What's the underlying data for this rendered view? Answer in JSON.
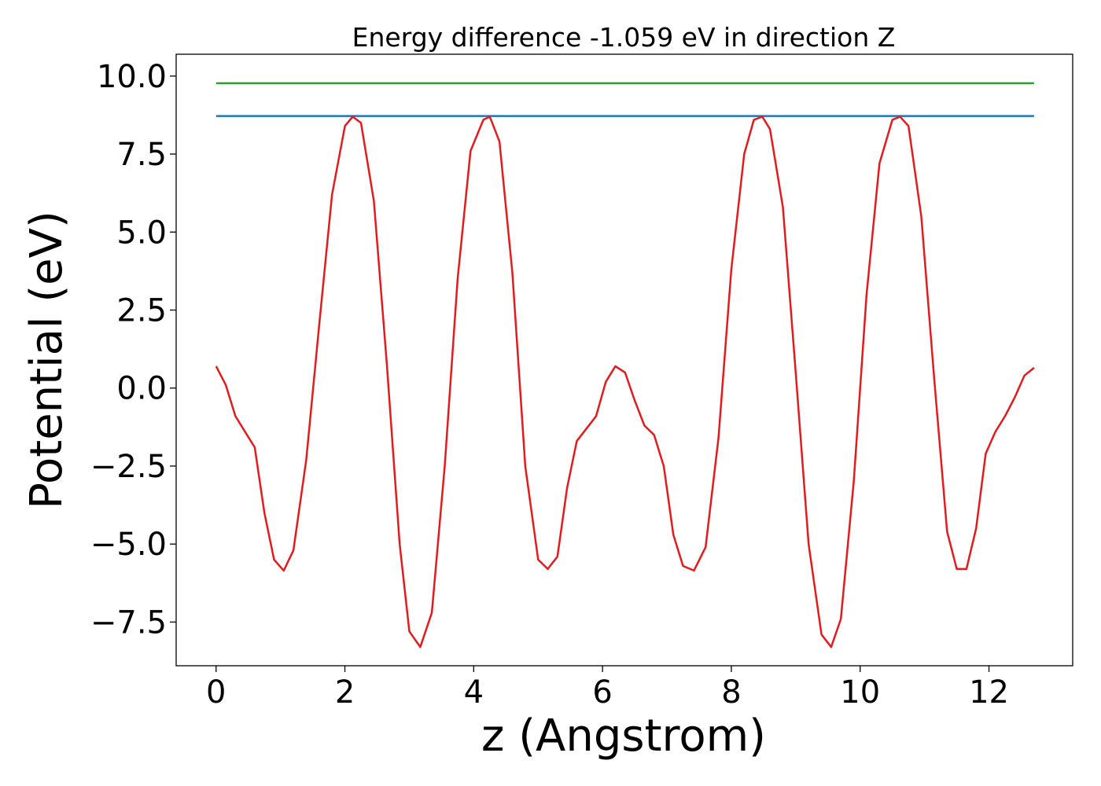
{
  "chart_data": {
    "type": "line",
    "title": "Energy difference -1.059 eV in direction Z",
    "xlabel": "z (Angstrom)",
    "ylabel": "Potential (eV)",
    "xlim": [
      -0.62,
      13.3
    ],
    "ylim": [
      -8.9,
      10.7
    ],
    "x_ticks": [
      0,
      2,
      4,
      6,
      8,
      10,
      12
    ],
    "x_tick_labels": [
      "0",
      "2",
      "4",
      "6",
      "8",
      "10",
      "12"
    ],
    "y_ticks": [
      -7.5,
      -5.0,
      -2.5,
      0.0,
      2.5,
      5.0,
      7.5,
      10.0
    ],
    "y_tick_labels": [
      "−7.5",
      "−5.0",
      "−2.5",
      "0.0",
      "2.5",
      "5.0",
      "7.5",
      "10.0"
    ],
    "grid": false,
    "series": [
      {
        "color": "#2ca02c",
        "x": [
          0,
          12.7
        ],
        "y": [
          9.77,
          9.77
        ]
      },
      {
        "color": "#1f77b4",
        "x": [
          0,
          12.7
        ],
        "y": [
          8.72,
          8.72
        ]
      },
      {
        "color": "#e41a1c",
        "x": [
          0,
          0.15,
          0.3,
          0.45,
          0.6,
          0.75,
          0.9,
          1.05,
          1.2,
          1.4,
          1.6,
          1.8,
          2.0,
          2.12,
          2.25,
          2.45,
          2.65,
          2.85,
          3.0,
          3.17,
          3.35,
          3.55,
          3.75,
          3.95,
          4.15,
          4.25,
          4.4,
          4.6,
          4.8,
          5.0,
          5.15,
          5.3,
          5.45,
          5.6,
          5.75,
          5.9,
          6.05,
          6.2,
          6.35,
          6.5,
          6.65,
          6.8,
          6.95,
          7.1,
          7.25,
          7.42,
          7.6,
          7.8,
          8.0,
          8.2,
          8.35,
          8.48,
          8.6,
          8.8,
          9.0,
          9.2,
          9.4,
          9.55,
          9.7,
          9.9,
          10.1,
          10.3,
          10.5,
          10.62,
          10.75,
          10.95,
          11.15,
          11.35,
          11.5,
          11.65,
          11.8,
          11.95,
          12.1,
          12.25,
          12.4,
          12.55,
          12.7
        ],
        "y": [
          0.7,
          0.1,
          -0.9,
          -1.4,
          -1.9,
          -4.0,
          -5.5,
          -5.85,
          -5.2,
          -2.3,
          2.0,
          6.2,
          8.4,
          8.7,
          8.5,
          6.0,
          0.8,
          -5.0,
          -7.8,
          -8.3,
          -7.2,
          -2.5,
          3.5,
          7.6,
          8.6,
          8.7,
          7.9,
          3.7,
          -2.5,
          -5.5,
          -5.8,
          -5.4,
          -3.2,
          -1.7,
          -1.3,
          -0.9,
          0.2,
          0.7,
          0.5,
          -0.4,
          -1.2,
          -1.5,
          -2.5,
          -4.7,
          -5.7,
          -5.85,
          -5.1,
          -1.6,
          3.8,
          7.5,
          8.6,
          8.7,
          8.3,
          5.8,
          0.5,
          -5.0,
          -7.9,
          -8.3,
          -7.4,
          -3.0,
          3.0,
          7.2,
          8.6,
          8.7,
          8.4,
          5.5,
          0.3,
          -4.6,
          -5.8,
          -5.8,
          -4.5,
          -2.1,
          -1.4,
          -0.9,
          -0.3,
          0.4,
          0.65
        ]
      }
    ]
  }
}
